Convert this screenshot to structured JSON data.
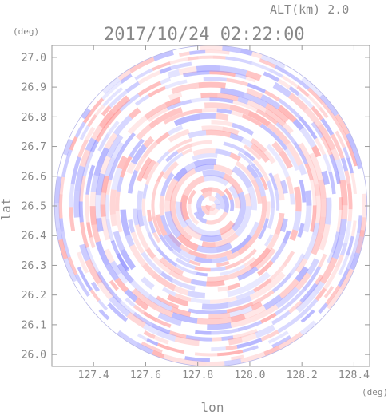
{
  "chart_data": {
    "type": "heatmap",
    "title": "2017/10/24 02:22:00",
    "subtitle": "ALT(km) 2.0",
    "xlabel": "lon",
    "ylabel": "lat",
    "x_unit": "(deg)",
    "y_unit": "(deg)",
    "xlim": [
      127.24,
      128.46
    ],
    "ylim": [
      25.96,
      27.04
    ],
    "center": {
      "lon": 127.85,
      "lat": 26.5
    },
    "radius_deg": {
      "lon": 0.6,
      "lat": 0.54
    },
    "x_ticks": [
      "127.4",
      "127.6",
      "127.8",
      "128.0",
      "128.2",
      "128.4"
    ],
    "x_tick_values": [
      127.4,
      127.6,
      127.8,
      128.0,
      128.2,
      128.4
    ],
    "y_ticks": [
      "26.0",
      "26.1",
      "26.2",
      "26.3",
      "26.4",
      "26.5",
      "26.6",
      "26.7",
      "26.8",
      "26.9",
      "27.0"
    ],
    "y_tick_values": [
      26.0,
      26.1,
      26.2,
      26.3,
      26.4,
      26.5,
      26.6,
      26.7,
      26.8,
      26.9,
      27.0
    ],
    "grid": false,
    "colors": {
      "positive": "#ff8c8c",
      "negative": "#8c8cff",
      "axis": "#999999",
      "text": "#888888"
    }
  }
}
